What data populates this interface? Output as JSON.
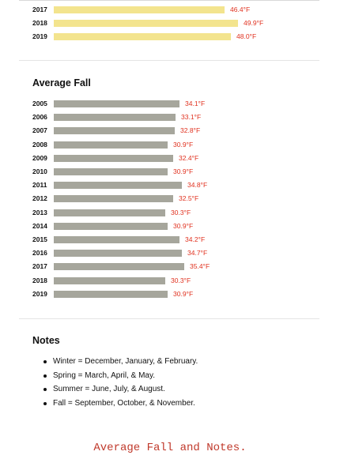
{
  "chart_data": [
    {
      "type": "bar",
      "orientation": "horizontal",
      "title": "",
      "categories": [
        "2017",
        "2018",
        "2019"
      ],
      "values": [
        46.4,
        49.9,
        48.0
      ],
      "value_labels": [
        "46.4°F",
        "49.9°F",
        "48.0°F"
      ],
      "bar_color": "#f3e48e",
      "label_color": "#e0301e"
    },
    {
      "type": "bar",
      "orientation": "horizontal",
      "title": "Average Fall",
      "categories": [
        "2005",
        "2006",
        "2007",
        "2008",
        "2009",
        "2010",
        "2011",
        "2012",
        "2013",
        "2014",
        "2015",
        "2016",
        "2017",
        "2018",
        "2019"
      ],
      "values": [
        34.1,
        33.1,
        32.8,
        30.9,
        32.4,
        30.9,
        34.8,
        32.5,
        30.3,
        30.9,
        34.2,
        34.7,
        35.4,
        30.3,
        30.9
      ],
      "value_labels": [
        "34.1°F",
        "33.1°F",
        "32.8°F",
        "30.9°F",
        "32.4°F",
        "30.9°F",
        "34.8°F",
        "32.5°F",
        "30.3°F",
        "30.9°F",
        "34.2°F",
        "34.7°F",
        "35.4°F",
        "30.3°F",
        "30.9°F"
      ],
      "bar_color": "#a6a69c",
      "label_color": "#e0301e"
    }
  ],
  "notes": {
    "title": "Notes",
    "items": [
      "Winter = December, January, & February.",
      "Spring = March, April, & May.",
      "Summer = June, July, & August.",
      "Fall = September, October, & November."
    ]
  },
  "caption": "Average Fall and Notes."
}
